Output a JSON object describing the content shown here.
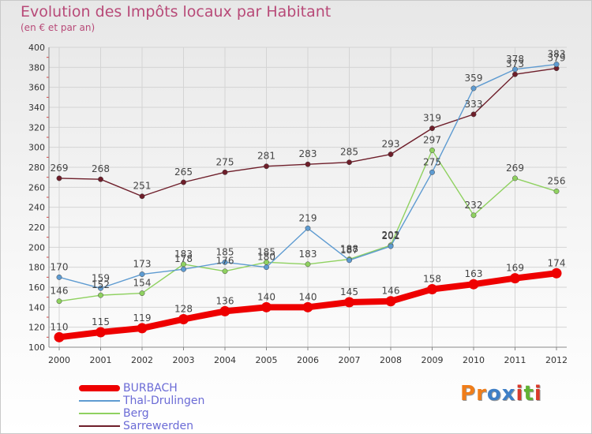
{
  "header": {
    "title": "Evolution des Impôts locaux par Habitant",
    "subtitle": "(en € et par an)"
  },
  "brand": {
    "text": "Proxiti",
    "colors": [
      "#f07d19",
      "#f07d19",
      "#3f7fc6",
      "#3f7fc6",
      "#d93a2b",
      "#5fb233",
      "#d93a2b"
    ]
  },
  "chart_data": {
    "type": "line",
    "title": "Evolution des Impôts locaux par Habitant",
    "subtitle": "(en € et par an)",
    "xlabel": "",
    "ylabel": "",
    "x": [
      2000,
      2001,
      2002,
      2003,
      2004,
      2005,
      2006,
      2007,
      2008,
      2009,
      2010,
      2011,
      2012
    ],
    "ylim": [
      100,
      400
    ],
    "yticks": [
      100,
      120,
      140,
      160,
      180,
      200,
      220,
      240,
      260,
      280,
      300,
      320,
      340,
      360,
      380,
      400
    ],
    "grid": true,
    "legend_position": "bottom-left",
    "series": [
      {
        "name": "BURBACH",
        "color": "#ee0000",
        "values": [
          110,
          115,
          119,
          128,
          136,
          140,
          140,
          145,
          146,
          158,
          163,
          169,
          174
        ]
      },
      {
        "name": "Thal-Drulingen",
        "color": "#5e9bd1",
        "values": [
          170,
          159,
          173,
          178,
          185,
          180,
          219,
          187,
          201,
          275,
          359,
          378,
          383
        ]
      },
      {
        "name": "Berg",
        "color": "#8fd160",
        "values": [
          146,
          152,
          154,
          183,
          176,
          185,
          183,
          188,
          202,
          297,
          232,
          269,
          256
        ]
      },
      {
        "name": "Sarrewerden",
        "color": "#6e1e2a",
        "values": [
          269,
          268,
          251,
          265,
          275,
          281,
          283,
          285,
          293,
          319,
          333,
          373,
          379
        ]
      }
    ]
  }
}
